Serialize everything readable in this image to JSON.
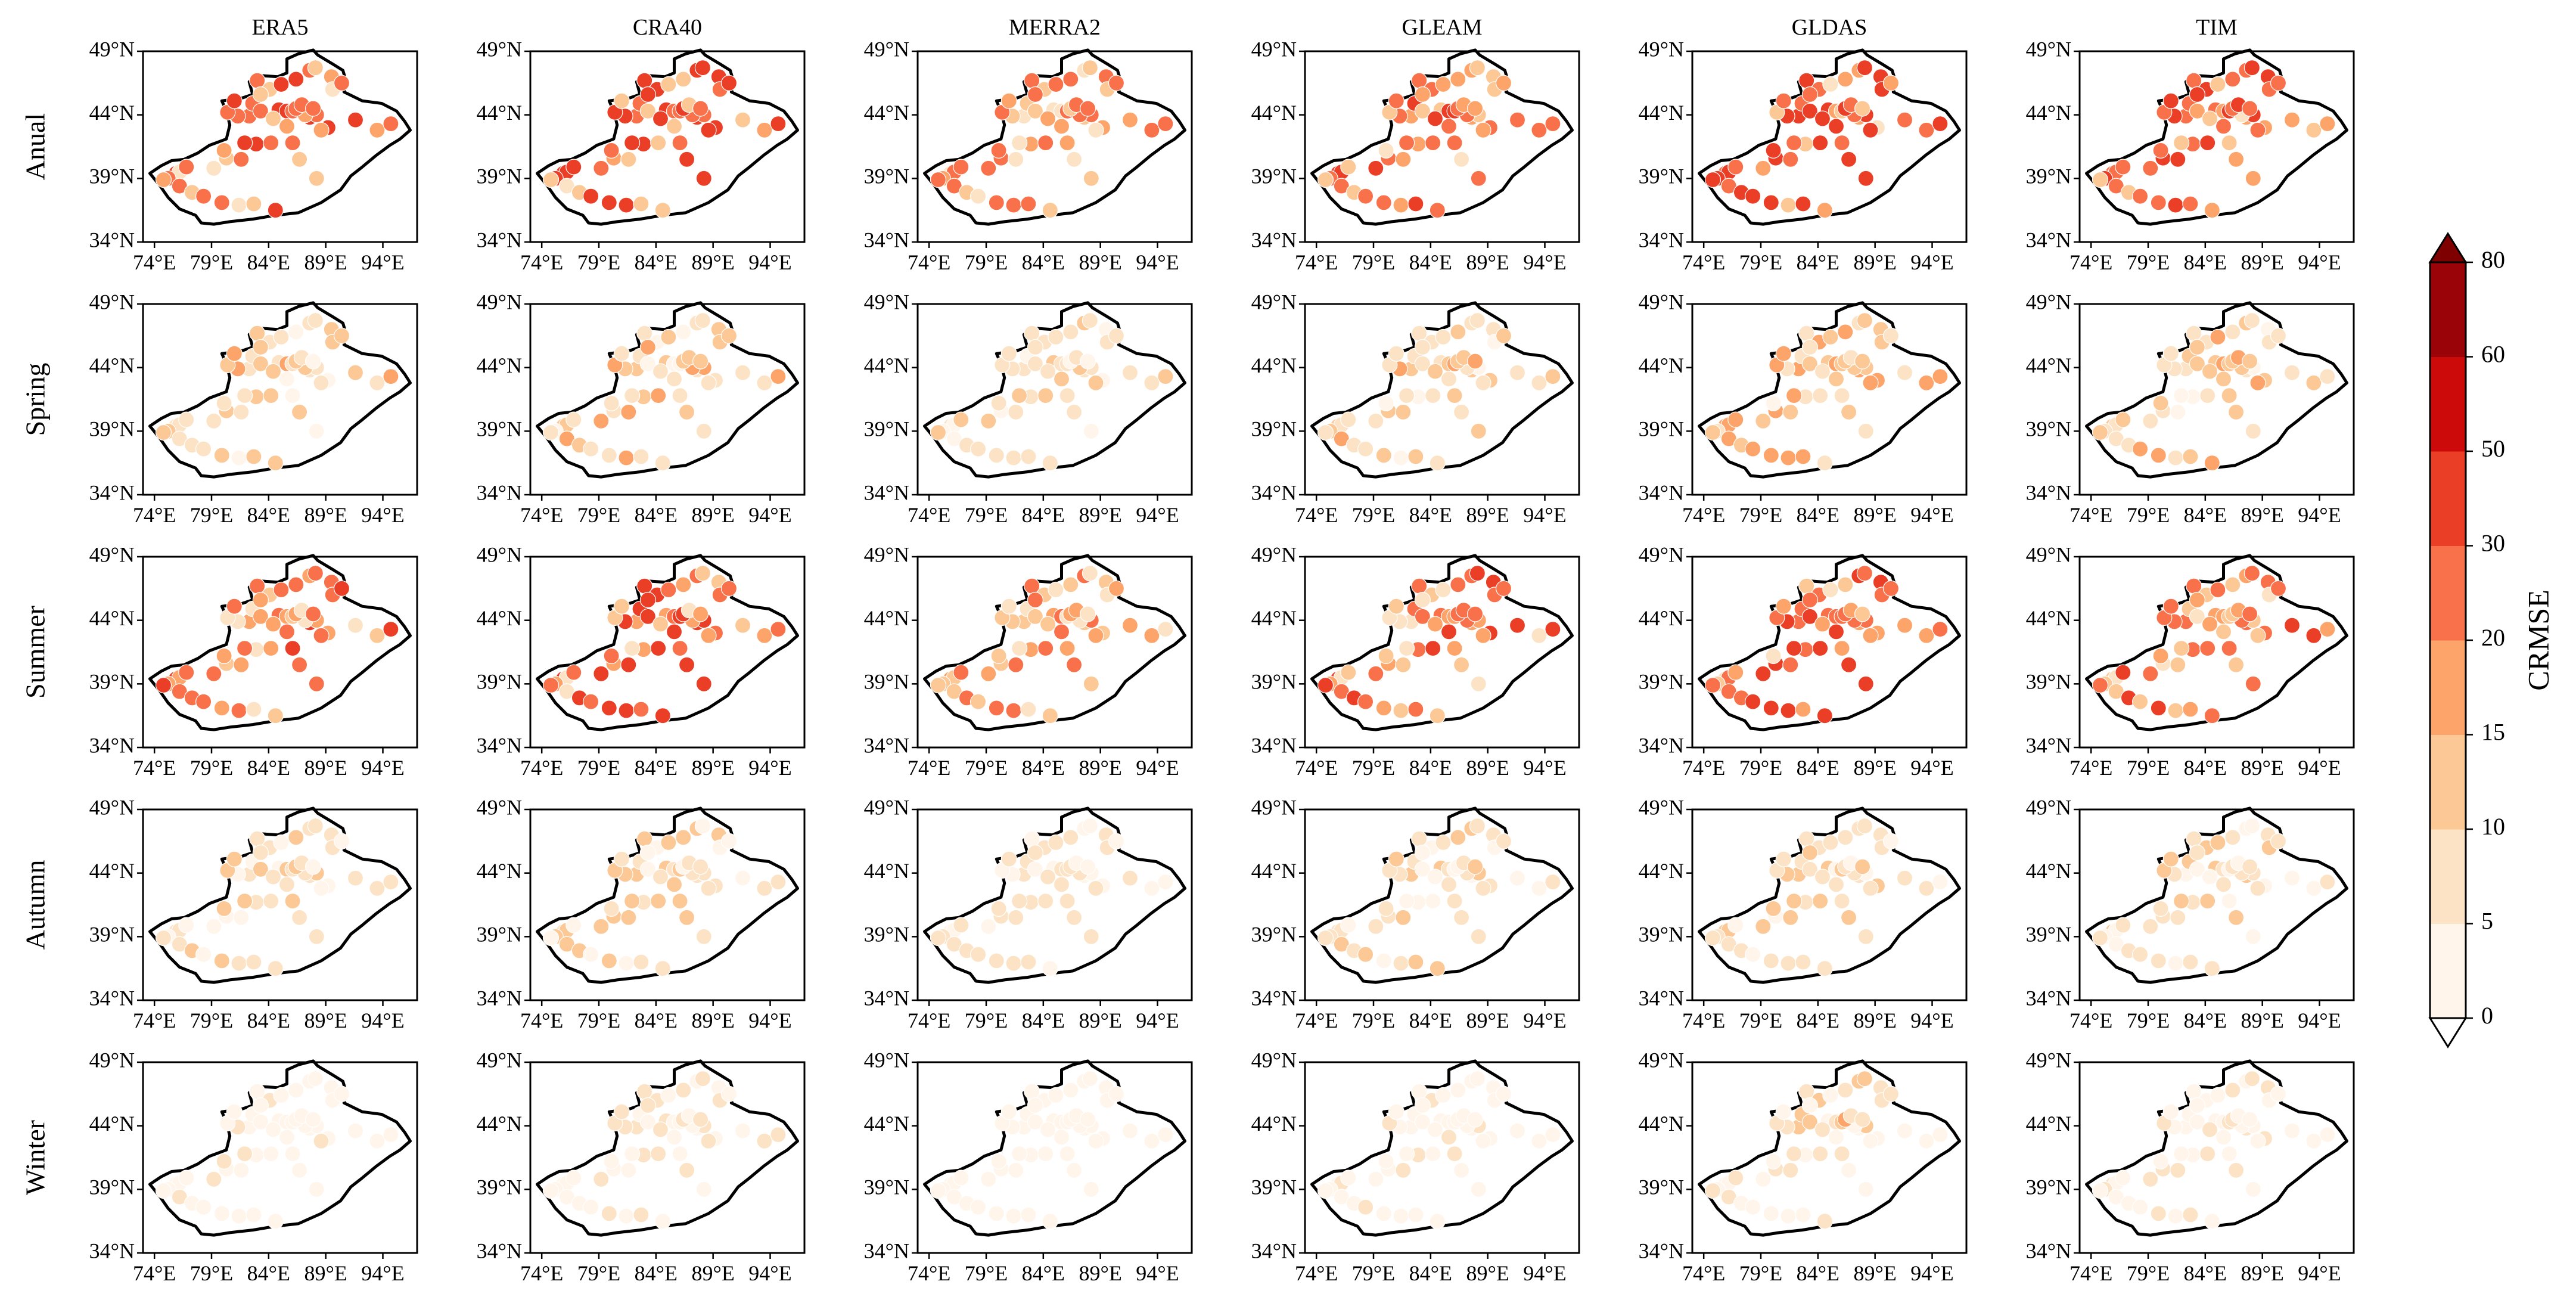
{
  "chart_data": {
    "type": "scatter",
    "title": "",
    "columns": [
      "ERA5",
      "CRA40",
      "MERRA2",
      "GLEAM",
      "GLDAS",
      "TIM"
    ],
    "rows": [
      "Anual",
      "Spring",
      "Summer",
      "Autumn",
      "Winter"
    ],
    "x_ticks": [
      "74°E",
      "79°E",
      "84°E",
      "89°E",
      "94°E"
    ],
    "y_ticks": [
      "34°N",
      "39°N",
      "44°N",
      "49°N"
    ],
    "x_tick_values": [
      74,
      79,
      84,
      89,
      94
    ],
    "y_tick_values": [
      34,
      39,
      44,
      49
    ],
    "xlim": [
      73,
      97
    ],
    "ylim": [
      34,
      49
    ],
    "colorbar": {
      "label": "CRMSE",
      "levels": [
        0,
        5,
        10,
        15,
        20,
        30,
        50,
        60,
        80
      ],
      "tick_labels": [
        "0",
        "5",
        "10",
        "15",
        "20",
        "30",
        "50",
        "60",
        "80"
      ],
      "colors": [
        "#fff5eb",
        "#fde3c6",
        "#fcc896",
        "#fda46a",
        "#f8714a",
        "#ea3e26",
        "#cd0a0a",
        "#9a0307"
      ],
      "extend": "both",
      "under_color": "#ffffff",
      "over_color": "#7f0000"
    },
    "boundary_outline_lonlat": [
      [
        73.6,
        39.4
      ],
      [
        74.6,
        40.0
      ],
      [
        75.5,
        40.4
      ],
      [
        76.6,
        40.5
      ],
      [
        77.8,
        41.0
      ],
      [
        78.8,
        41.6
      ],
      [
        80.3,
        42.1
      ],
      [
        80.6,
        43.2
      ],
      [
        80.3,
        44.3
      ],
      [
        79.9,
        45.1
      ],
      [
        81.6,
        45.3
      ],
      [
        82.6,
        45.6
      ],
      [
        82.3,
        46.6
      ],
      [
        83.1,
        47.1
      ],
      [
        84.8,
        47.0
      ],
      [
        85.6,
        47.3
      ],
      [
        85.6,
        48.4
      ],
      [
        86.6,
        48.8
      ],
      [
        87.9,
        49.1
      ],
      [
        88.3,
        48.7
      ],
      [
        89.6,
        48.0
      ],
      [
        90.5,
        47.5
      ],
      [
        90.8,
        46.6
      ],
      [
        90.6,
        45.8
      ],
      [
        92.2,
        45.1
      ],
      [
        93.9,
        44.9
      ],
      [
        95.2,
        44.3
      ],
      [
        95.9,
        43.5
      ],
      [
        96.4,
        42.8
      ],
      [
        95.5,
        42.1
      ],
      [
        94.6,
        41.6
      ],
      [
        93.4,
        40.8
      ],
      [
        92.2,
        39.9
      ],
      [
        91.2,
        39.2
      ],
      [
        90.3,
        38.1
      ],
      [
        88.6,
        37.1
      ],
      [
        86.6,
        36.3
      ],
      [
        84.6,
        36.1
      ],
      [
        82.6,
        35.8
      ],
      [
        80.6,
        35.6
      ],
      [
        79.2,
        35.4
      ],
      [
        78.1,
        35.5
      ],
      [
        77.6,
        36.1
      ],
      [
        76.2,
        36.6
      ],
      [
        75.2,
        37.5
      ],
      [
        74.5,
        38.4
      ],
      [
        73.6,
        39.4
      ]
    ],
    "stations_lonlat": [
      [
        75.9,
        39.4
      ],
      [
        76.2,
        39.5
      ],
      [
        75.2,
        39.0
      ],
      [
        74.8,
        38.9
      ],
      [
        76.8,
        39.9
      ],
      [
        76.2,
        38.4
      ],
      [
        77.3,
        37.9
      ],
      [
        78.3,
        37.6
      ],
      [
        79.9,
        37.1
      ],
      [
        81.4,
        36.9
      ],
      [
        82.7,
        37.0
      ],
      [
        84.6,
        36.5
      ],
      [
        79.2,
        39.8
      ],
      [
        80.3,
        40.6
      ],
      [
        81.6,
        40.5
      ],
      [
        82.9,
        41.7
      ],
      [
        84.2,
        41.8
      ],
      [
        86.1,
        41.8
      ],
      [
        80.1,
        41.2
      ],
      [
        81.9,
        41.8
      ],
      [
        82.3,
        43.9
      ],
      [
        81.3,
        43.9
      ],
      [
        80.4,
        44.2
      ],
      [
        81.0,
        45.1
      ],
      [
        82.6,
        44.9
      ],
      [
        83.3,
        44.3
      ],
      [
        84.9,
        44.4
      ],
      [
        85.6,
        44.3
      ],
      [
        86.1,
        44.3
      ],
      [
        87.6,
        43.8
      ],
      [
        88.2,
        44.0
      ],
      [
        87.2,
        44.0
      ],
      [
        86.4,
        44.5
      ],
      [
        84.1,
        46.0
      ],
      [
        83.0,
        46.7
      ],
      [
        85.1,
        46.4
      ],
      [
        86.4,
        46.8
      ],
      [
        87.6,
        47.5
      ],
      [
        88.1,
        47.7
      ],
      [
        89.5,
        47.0
      ],
      [
        89.6,
        46.0
      ],
      [
        90.4,
        46.5
      ],
      [
        89.2,
        43.0
      ],
      [
        88.6,
        42.8
      ],
      [
        91.6,
        43.6
      ],
      [
        93.5,
        42.8
      ],
      [
        94.7,
        43.3
      ],
      [
        86.7,
        40.5
      ],
      [
        88.2,
        39.0
      ],
      [
        85.6,
        43.1
      ],
      [
        84.4,
        43.7
      ],
      [
        83.3,
        45.6
      ],
      [
        86.9,
        44.8
      ],
      [
        87.9,
        44.5
      ]
    ]
  }
}
